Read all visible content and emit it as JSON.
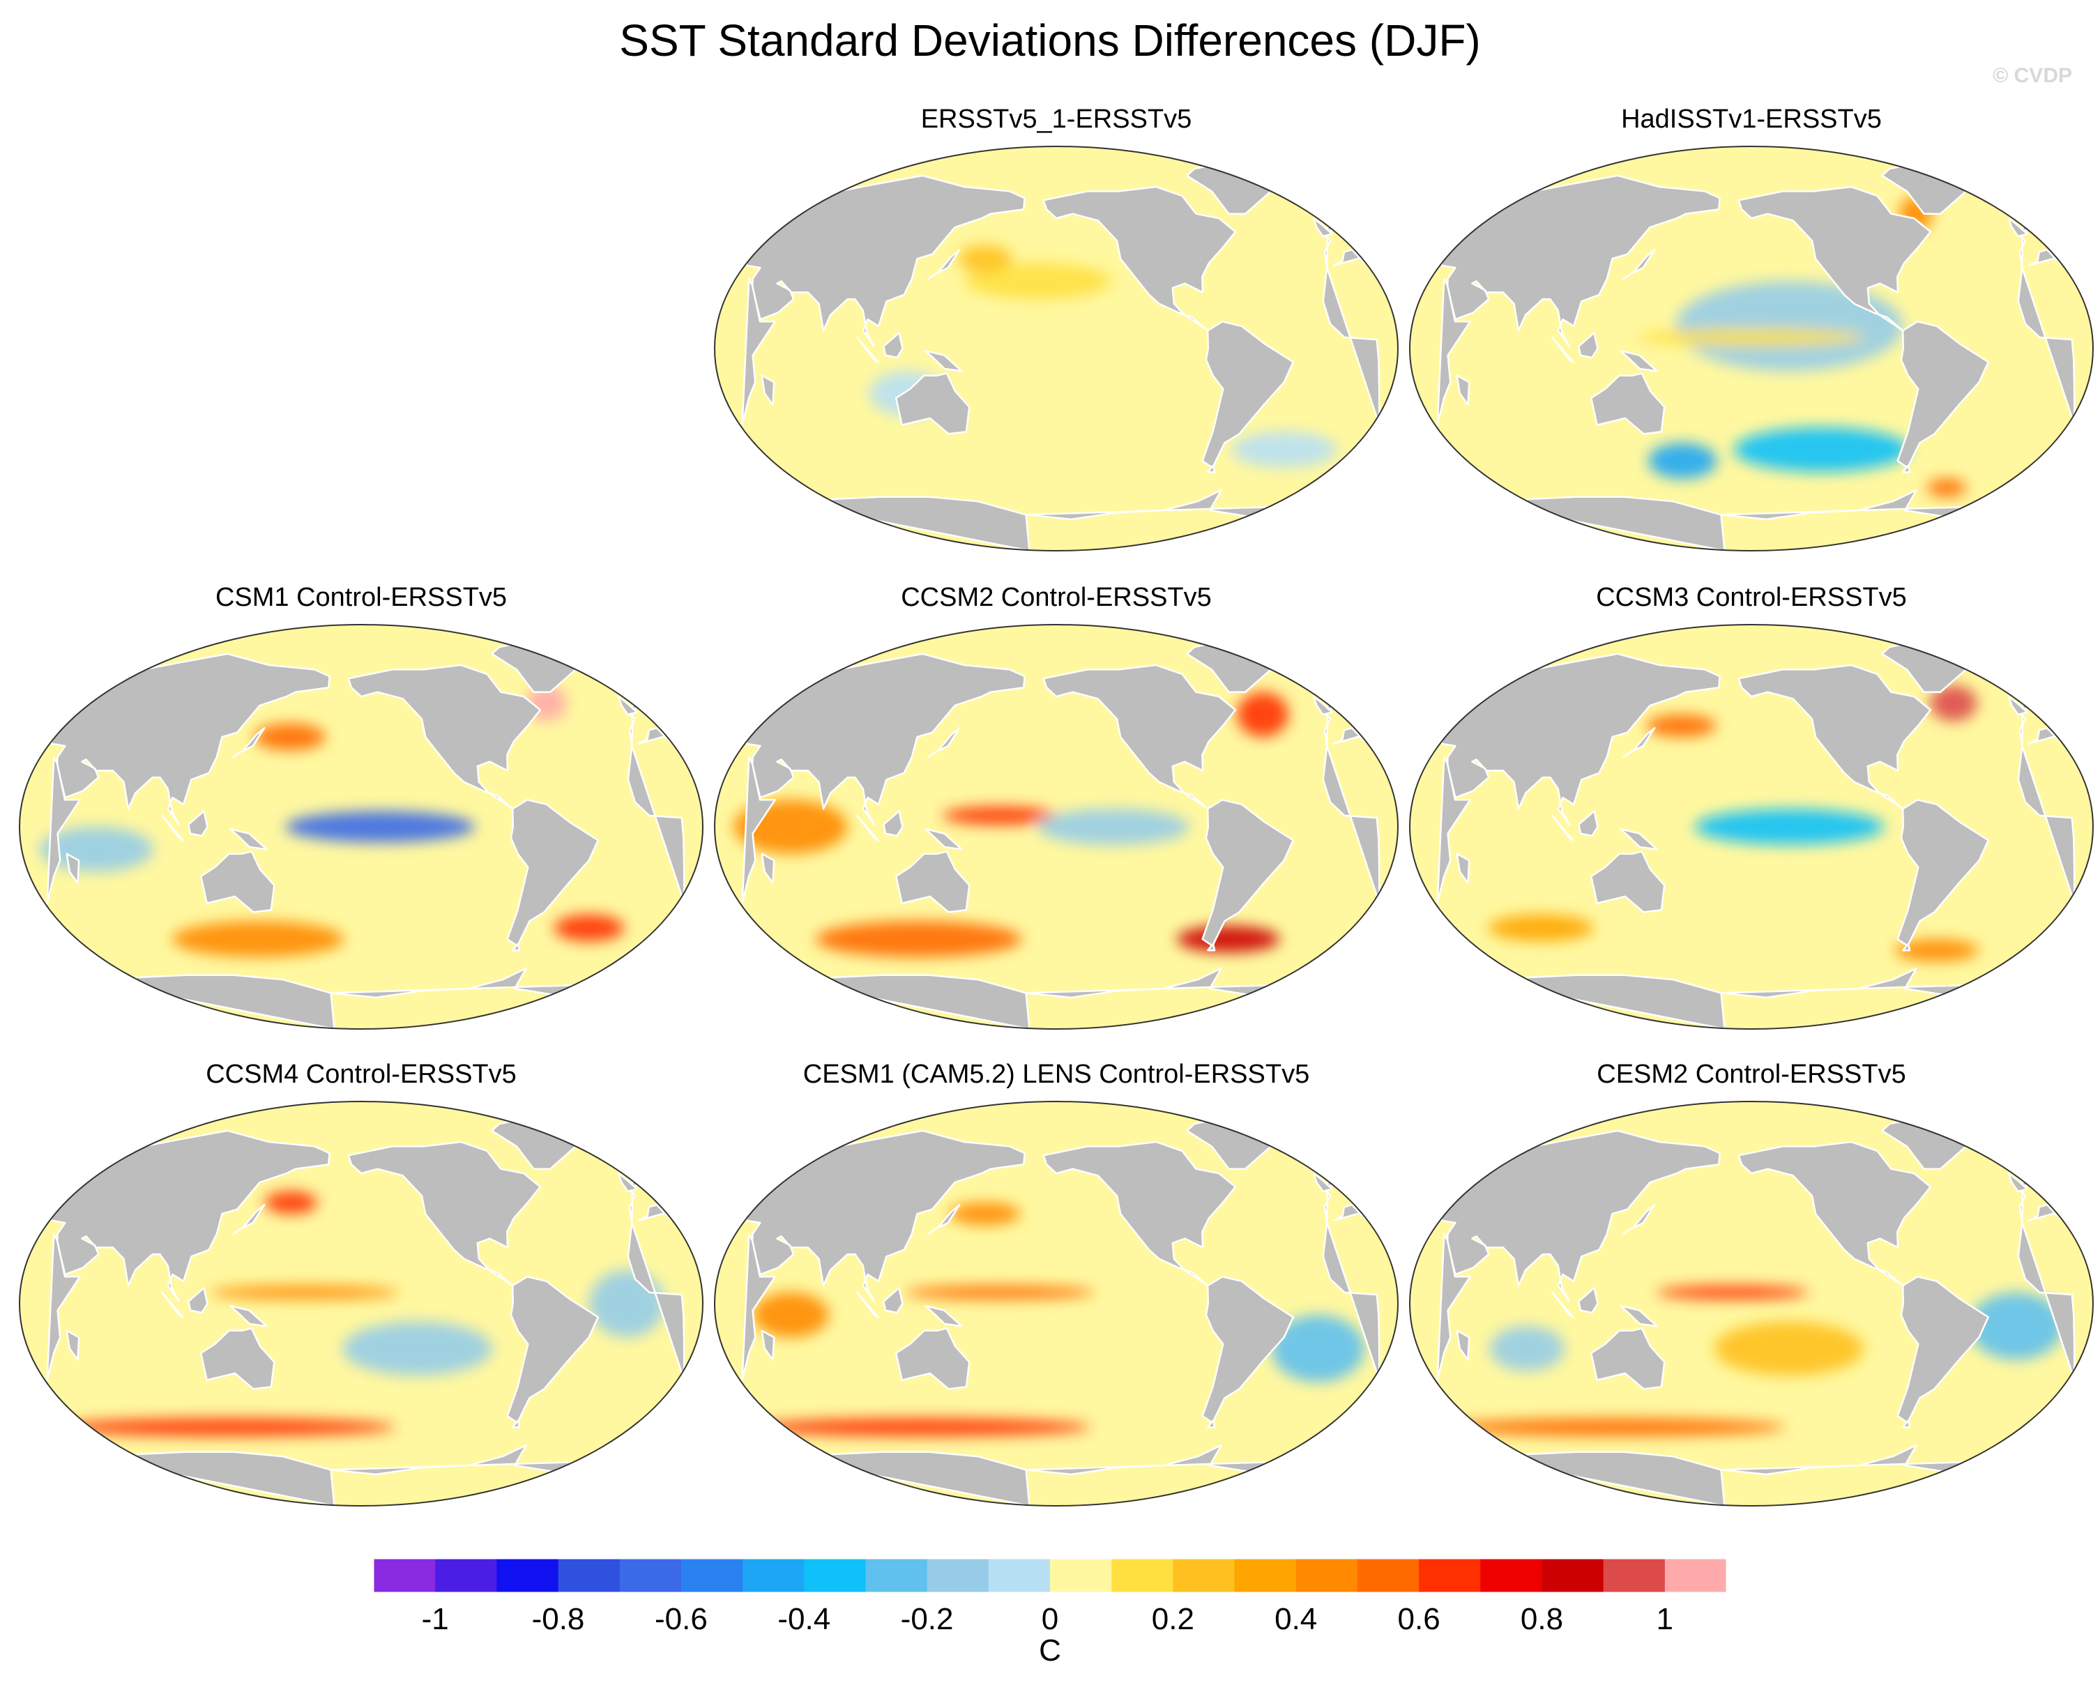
{
  "figure": {
    "title": "SST Standard Deviations Differences (DJF)",
    "watermark": "© CVDP"
  },
  "colors": {
    "land": "#bdbdbd",
    "coast": "#ffffff",
    "outline": "#333333"
  },
  "panels": [
    {
      "id": "ersstv5_1",
      "title": "ERSSTv5_1-ERSSTv5",
      "patches": [
        {
          "lon": -170,
          "lat": 30,
          "rlon": 40,
          "rlat": 8,
          "val": 0.1
        },
        {
          "lon": 120,
          "lat": -20,
          "rlon": 20,
          "rlat": 10,
          "val": -0.1
        },
        {
          "lon": -30,
          "lat": -45,
          "rlon": 30,
          "rlat": 8,
          "val": -0.1
        },
        {
          "lon": 160,
          "lat": 40,
          "rlon": 15,
          "rlat": 6,
          "val": 0.2
        }
      ]
    },
    {
      "id": "hadisst",
      "title": "HadISSTv1-ERSSTv5",
      "patches": [
        {
          "lon": -140,
          "lat": 10,
          "rlon": 60,
          "rlat": 20,
          "val": -0.2
        },
        {
          "lon": -120,
          "lat": -45,
          "rlon": 50,
          "rlat": 10,
          "val": -0.4
        },
        {
          "lon": 160,
          "lat": -50,
          "rlon": 20,
          "rlat": 8,
          "val": -0.5
        },
        {
          "lon": -160,
          "lat": 5,
          "rlon": 60,
          "rlat": 4,
          "val": 0.1
        },
        {
          "lon": -40,
          "lat": -62,
          "rlon": 12,
          "rlat": 4,
          "val": 0.5
        },
        {
          "lon": -60,
          "lat": 60,
          "rlon": 10,
          "rlat": 8,
          "val": 0.4
        }
      ]
    },
    {
      "id": "csm1",
      "title": "CSM1 Control-ERSSTv5",
      "patches": [
        {
          "lon": -150,
          "lat": 0,
          "rlon": 50,
          "rlat": 7,
          "val": -0.7
        },
        {
          "lon": 160,
          "lat": 40,
          "rlon": 20,
          "rlat": 6,
          "val": 0.5
        },
        {
          "lon": 140,
          "lat": -50,
          "rlon": 50,
          "rlat": 8,
          "val": 0.4
        },
        {
          "lon": -50,
          "lat": 55,
          "rlon": 12,
          "rlat": 8,
          "val": 1.05
        },
        {
          "lon": -30,
          "lat": -45,
          "rlon": 20,
          "rlat": 6,
          "val": 0.6
        },
        {
          "lon": 60,
          "lat": -10,
          "rlon": 30,
          "rlat": 10,
          "val": -0.2
        }
      ]
    },
    {
      "id": "ccsm2",
      "title": "CCSM2 Control-ERSSTv5",
      "patches": [
        {
          "lon": 170,
          "lat": 5,
          "rlon": 30,
          "rlat": 4,
          "val": 0.6
        },
        {
          "lon": 120,
          "lat": -50,
          "rlon": 60,
          "rlat": 8,
          "val": 0.5
        },
        {
          "lon": -60,
          "lat": -50,
          "rlon": 30,
          "rlat": 6,
          "val": 0.8
        },
        {
          "lon": 60,
          "lat": 0,
          "rlon": 30,
          "rlat": 12,
          "val": 0.4
        },
        {
          "lon": -40,
          "lat": 50,
          "rlon": 15,
          "rlat": 10,
          "val": 0.6
        },
        {
          "lon": -130,
          "lat": 0,
          "rlon": 40,
          "rlat": 8,
          "val": -0.2
        }
      ]
    },
    {
      "id": "ccsm3",
      "title": "CCSM3 Control-ERSSTv5",
      "patches": [
        {
          "lon": -40,
          "lat": 55,
          "rlon": 14,
          "rlat": 8,
          "val": 0.9
        },
        {
          "lon": 160,
          "lat": 45,
          "rlon": 20,
          "rlat": 5,
          "val": 0.5
        },
        {
          "lon": -140,
          "lat": 0,
          "rlon": 50,
          "rlat": 8,
          "val": -0.4
        },
        {
          "lon": 80,
          "lat": -45,
          "rlon": 30,
          "rlat": 6,
          "val": 0.3
        },
        {
          "lon": -50,
          "lat": -55,
          "rlon": 25,
          "rlat": 5,
          "val": 0.4
        }
      ]
    },
    {
      "id": "ccsm4",
      "title": "CCSM4 Control-ERSSTv5",
      "patches": [
        {
          "lon": 170,
          "lat": 5,
          "rlon": 50,
          "rlat": 3,
          "val": 0.4
        },
        {
          "lon": 120,
          "lat": -55,
          "rlon": 100,
          "rlat": 4,
          "val": 0.6
        },
        {
          "lon": 160,
          "lat": 45,
          "rlon": 15,
          "rlat": 5,
          "val": 0.6
        },
        {
          "lon": -130,
          "lat": -20,
          "rlon": 40,
          "rlat": 12,
          "val": -0.2
        },
        {
          "lon": -20,
          "lat": 0,
          "rlon": 20,
          "rlat": 15,
          "val": -0.2
        }
      ]
    },
    {
      "id": "cesm1",
      "title": "CESM1 (CAM5.2) LENS Control-ERSSTv5",
      "patches": [
        {
          "lon": 170,
          "lat": 5,
          "rlon": 50,
          "rlat": 3,
          "val": 0.5
        },
        {
          "lon": 120,
          "lat": -55,
          "rlon": 100,
          "rlat": 4,
          "val": 0.6
        },
        {
          "lon": 60,
          "lat": -5,
          "rlon": 20,
          "rlat": 10,
          "val": 0.4
        },
        {
          "lon": 160,
          "lat": 40,
          "rlon": 20,
          "rlat": 5,
          "val": 0.4
        },
        {
          "lon": -20,
          "lat": -20,
          "rlon": 25,
          "rlat": 15,
          "val": -0.3
        }
      ]
    },
    {
      "id": "cesm2",
      "title": "CESM2 Control-ERSSTv5",
      "patches": [
        {
          "lon": -170,
          "lat": 5,
          "rlon": 40,
          "rlat": 3,
          "val": 0.6
        },
        {
          "lon": 120,
          "lat": -55,
          "rlon": 100,
          "rlat": 4,
          "val": 0.5
        },
        {
          "lon": -140,
          "lat": -20,
          "rlon": 40,
          "rlat": 12,
          "val": 0.2
        },
        {
          "lon": -20,
          "lat": -10,
          "rlon": 25,
          "rlat": 15,
          "val": -0.3
        },
        {
          "lon": 80,
          "lat": -20,
          "rlon": 20,
          "rlat": 10,
          "val": -0.2
        }
      ]
    }
  ],
  "colorbar": {
    "levels": [
      -1.1,
      -1.0,
      -0.9,
      -0.8,
      -0.7,
      -0.6,
      -0.5,
      -0.4,
      -0.3,
      -0.2,
      -0.1,
      0,
      0.1,
      0.2,
      0.3,
      0.4,
      0.5,
      0.6,
      0.7,
      0.8,
      0.9,
      1.0,
      1.1
    ],
    "colors": [
      "#8a2be2",
      "#4b1ee6",
      "#1010f0",
      "#3050e0",
      "#3a6ae8",
      "#2a82f0",
      "#1ca6f5",
      "#10c0f8",
      "#60c0ee",
      "#96cce8",
      "#b8e0f4",
      "#fff8a0",
      "#ffe040",
      "#ffc020",
      "#ffa500",
      "#ff8a00",
      "#ff6a00",
      "#ff3000",
      "#ee0000",
      "#cc0000",
      "#dd4a4a",
      "#ffaaaa"
    ],
    "tick_labels": [
      "-1",
      "-0.8",
      "-0.6",
      "-0.4",
      "-0.2",
      "0",
      "0.2",
      "0.4",
      "0.6",
      "0.8",
      "1"
    ],
    "tick_values": [
      -1.0,
      -0.8,
      -0.6,
      -0.4,
      -0.2,
      0,
      0.2,
      0.4,
      0.6,
      0.8,
      1.0
    ],
    "unit": "C"
  },
  "land_polygons": [
    [
      [
        -168,
        66
      ],
      [
        -140,
        70
      ],
      [
        -120,
        70
      ],
      [
        -95,
        72
      ],
      [
        -80,
        68
      ],
      [
        -75,
        60
      ],
      [
        -62,
        58
      ],
      [
        -55,
        52
      ],
      [
        -65,
        45
      ],
      [
        -75,
        38
      ],
      [
        -80,
        32
      ],
      [
        -81,
        25
      ],
      [
        -90,
        29
      ],
      [
        -97,
        27
      ],
      [
        -97,
        20
      ],
      [
        -92,
        15
      ],
      [
        -85,
        11
      ],
      [
        -80,
        8
      ],
      [
        -88,
        14
      ],
      [
        -95,
        16
      ],
      [
        -105,
        20
      ],
      [
        -110,
        24
      ],
      [
        -117,
        32
      ],
      [
        -124,
        40
      ],
      [
        -125,
        48
      ],
      [
        -135,
        57
      ],
      [
        -150,
        60
      ],
      [
        -160,
        58
      ],
      [
        -166,
        62
      ]
    ],
    [
      [
        -80,
        8
      ],
      [
        -72,
        12
      ],
      [
        -62,
        10
      ],
      [
        -50,
        2
      ],
      [
        -35,
        -6
      ],
      [
        -39,
        -15
      ],
      [
        -48,
        -25
      ],
      [
        -58,
        -38
      ],
      [
        -65,
        -42
      ],
      [
        -68,
        -53
      ],
      [
        -75,
        -50
      ],
      [
        -73,
        -37
      ],
      [
        -71,
        -18
      ],
      [
        -77,
        -12
      ],
      [
        -81,
        -5
      ],
      [
        -80,
        0
      ]
    ],
    [
      [
        -10,
        36
      ],
      [
        -17,
        21
      ],
      [
        -15,
        11
      ],
      [
        -8,
        5
      ],
      [
        9,
        4
      ],
      [
        10,
        -5
      ],
      [
        12,
        -17
      ],
      [
        18,
        -34
      ],
      [
        27,
        -34
      ],
      [
        35,
        -22
      ],
      [
        40,
        -15
      ],
      [
        40,
        -3
      ],
      [
        51,
        12
      ],
      [
        43,
        12
      ],
      [
        35,
        28
      ],
      [
        32,
        31
      ],
      [
        20,
        32
      ],
      [
        10,
        37
      ]
    ],
    [
      [
        -10,
        36
      ],
      [
        -8,
        43
      ],
      [
        -2,
        48
      ],
      [
        -5,
        52
      ],
      [
        5,
        53
      ],
      [
        10,
        58
      ],
      [
        5,
        62
      ],
      [
        15,
        70
      ],
      [
        30,
        71
      ],
      [
        60,
        70
      ],
      [
        80,
        73
      ],
      [
        110,
        77
      ],
      [
        140,
        72
      ],
      [
        170,
        70
      ],
      [
        180,
        67
      ],
      [
        180,
        62
      ],
      [
        160,
        60
      ],
      [
        155,
        58
      ],
      [
        140,
        54
      ],
      [
        130,
        42
      ],
      [
        122,
        40
      ],
      [
        121,
        31
      ],
      [
        118,
        24
      ],
      [
        109,
        21
      ],
      [
        106,
        10
      ],
      [
        100,
        13
      ],
      [
        98,
        8
      ],
      [
        104,
        1
      ],
      [
        100,
        7
      ],
      [
        97,
        17
      ],
      [
        92,
        22
      ],
      [
        88,
        22
      ],
      [
        80,
        15
      ],
      [
        77,
        8
      ],
      [
        73,
        20
      ],
      [
        66,
        25
      ],
      [
        57,
        25
      ],
      [
        50,
        30
      ],
      [
        48,
        29
      ],
      [
        56,
        26
      ],
      [
        59,
        22
      ],
      [
        52,
        16
      ],
      [
        43,
        13
      ],
      [
        39,
        21
      ],
      [
        35,
        28
      ],
      [
        34,
        31
      ],
      [
        36,
        36
      ],
      [
        28,
        37
      ],
      [
        26,
        40
      ],
      [
        22,
        37
      ],
      [
        19,
        42
      ],
      [
        13,
        46
      ],
      [
        12,
        44
      ],
      [
        16,
        40
      ],
      [
        12,
        38
      ],
      [
        8,
        44
      ],
      [
        3,
        43
      ],
      [
        0,
        39
      ],
      [
        -6,
        37
      ]
    ],
    [
      [
        114,
        -22
      ],
      [
        122,
        -18
      ],
      [
        130,
        -12
      ],
      [
        137,
        -12
      ],
      [
        142,
        -11
      ],
      [
        146,
        -19
      ],
      [
        153,
        -26
      ],
      [
        150,
        -37
      ],
      [
        140,
        -38
      ],
      [
        131,
        -31
      ],
      [
        115,
        -34
      ]
    ],
    [
      [
        -180,
        -74
      ],
      [
        -150,
        -76
      ],
      [
        -120,
        -73
      ],
      [
        -90,
        -72
      ],
      [
        -70,
        -68
      ],
      [
        -58,
        -63
      ],
      [
        -60,
        -72
      ],
      [
        -30,
        -75
      ],
      [
        0,
        -70
      ],
      [
        30,
        -69
      ],
      [
        60,
        -67
      ],
      [
        90,
        -66
      ],
      [
        120,
        -66
      ],
      [
        150,
        -68
      ],
      [
        170,
        -72
      ],
      [
        180,
        -74
      ],
      [
        180,
        -90
      ],
      [
        -180,
        -90
      ]
    ],
    [
      [
        -55,
        60
      ],
      [
        -45,
        60
      ],
      [
        -22,
        70
      ],
      [
        -20,
        80
      ],
      [
        -40,
        83
      ],
      [
        -65,
        80
      ],
      [
        -72,
        77
      ],
      [
        -60,
        70
      ]
    ],
    [
      [
        95,
        5
      ],
      [
        104,
        -5
      ],
      [
        106,
        -6
      ],
      [
        102,
        -2
      ]
    ],
    [
      [
        109,
        1
      ],
      [
        117,
        7
      ],
      [
        119,
        0
      ],
      [
        116,
        -4
      ],
      [
        110,
        -3
      ]
    ],
    [
      [
        131,
        -1
      ],
      [
        141,
        -3
      ],
      [
        150,
        -10
      ],
      [
        141,
        -9
      ],
      [
        135,
        -4
      ]
    ],
    [
      [
        130,
        31
      ],
      [
        135,
        34
      ],
      [
        141,
        41
      ],
      [
        145,
        44
      ],
      [
        140,
        36
      ],
      [
        133,
        33
      ]
    ],
    [
      [
        -5,
        50
      ],
      [
        1,
        51
      ],
      [
        -2,
        55
      ],
      [
        -5,
        58
      ],
      [
        -6,
        54
      ]
    ],
    [
      [
        44,
        -12
      ],
      [
        50,
        -15
      ],
      [
        47,
        -25
      ],
      [
        44,
        -20
      ]
    ],
    [
      [
        -70,
        -55
      ],
      [
        -66,
        -55
      ],
      [
        -68,
        -52
      ]
    ]
  ]
}
